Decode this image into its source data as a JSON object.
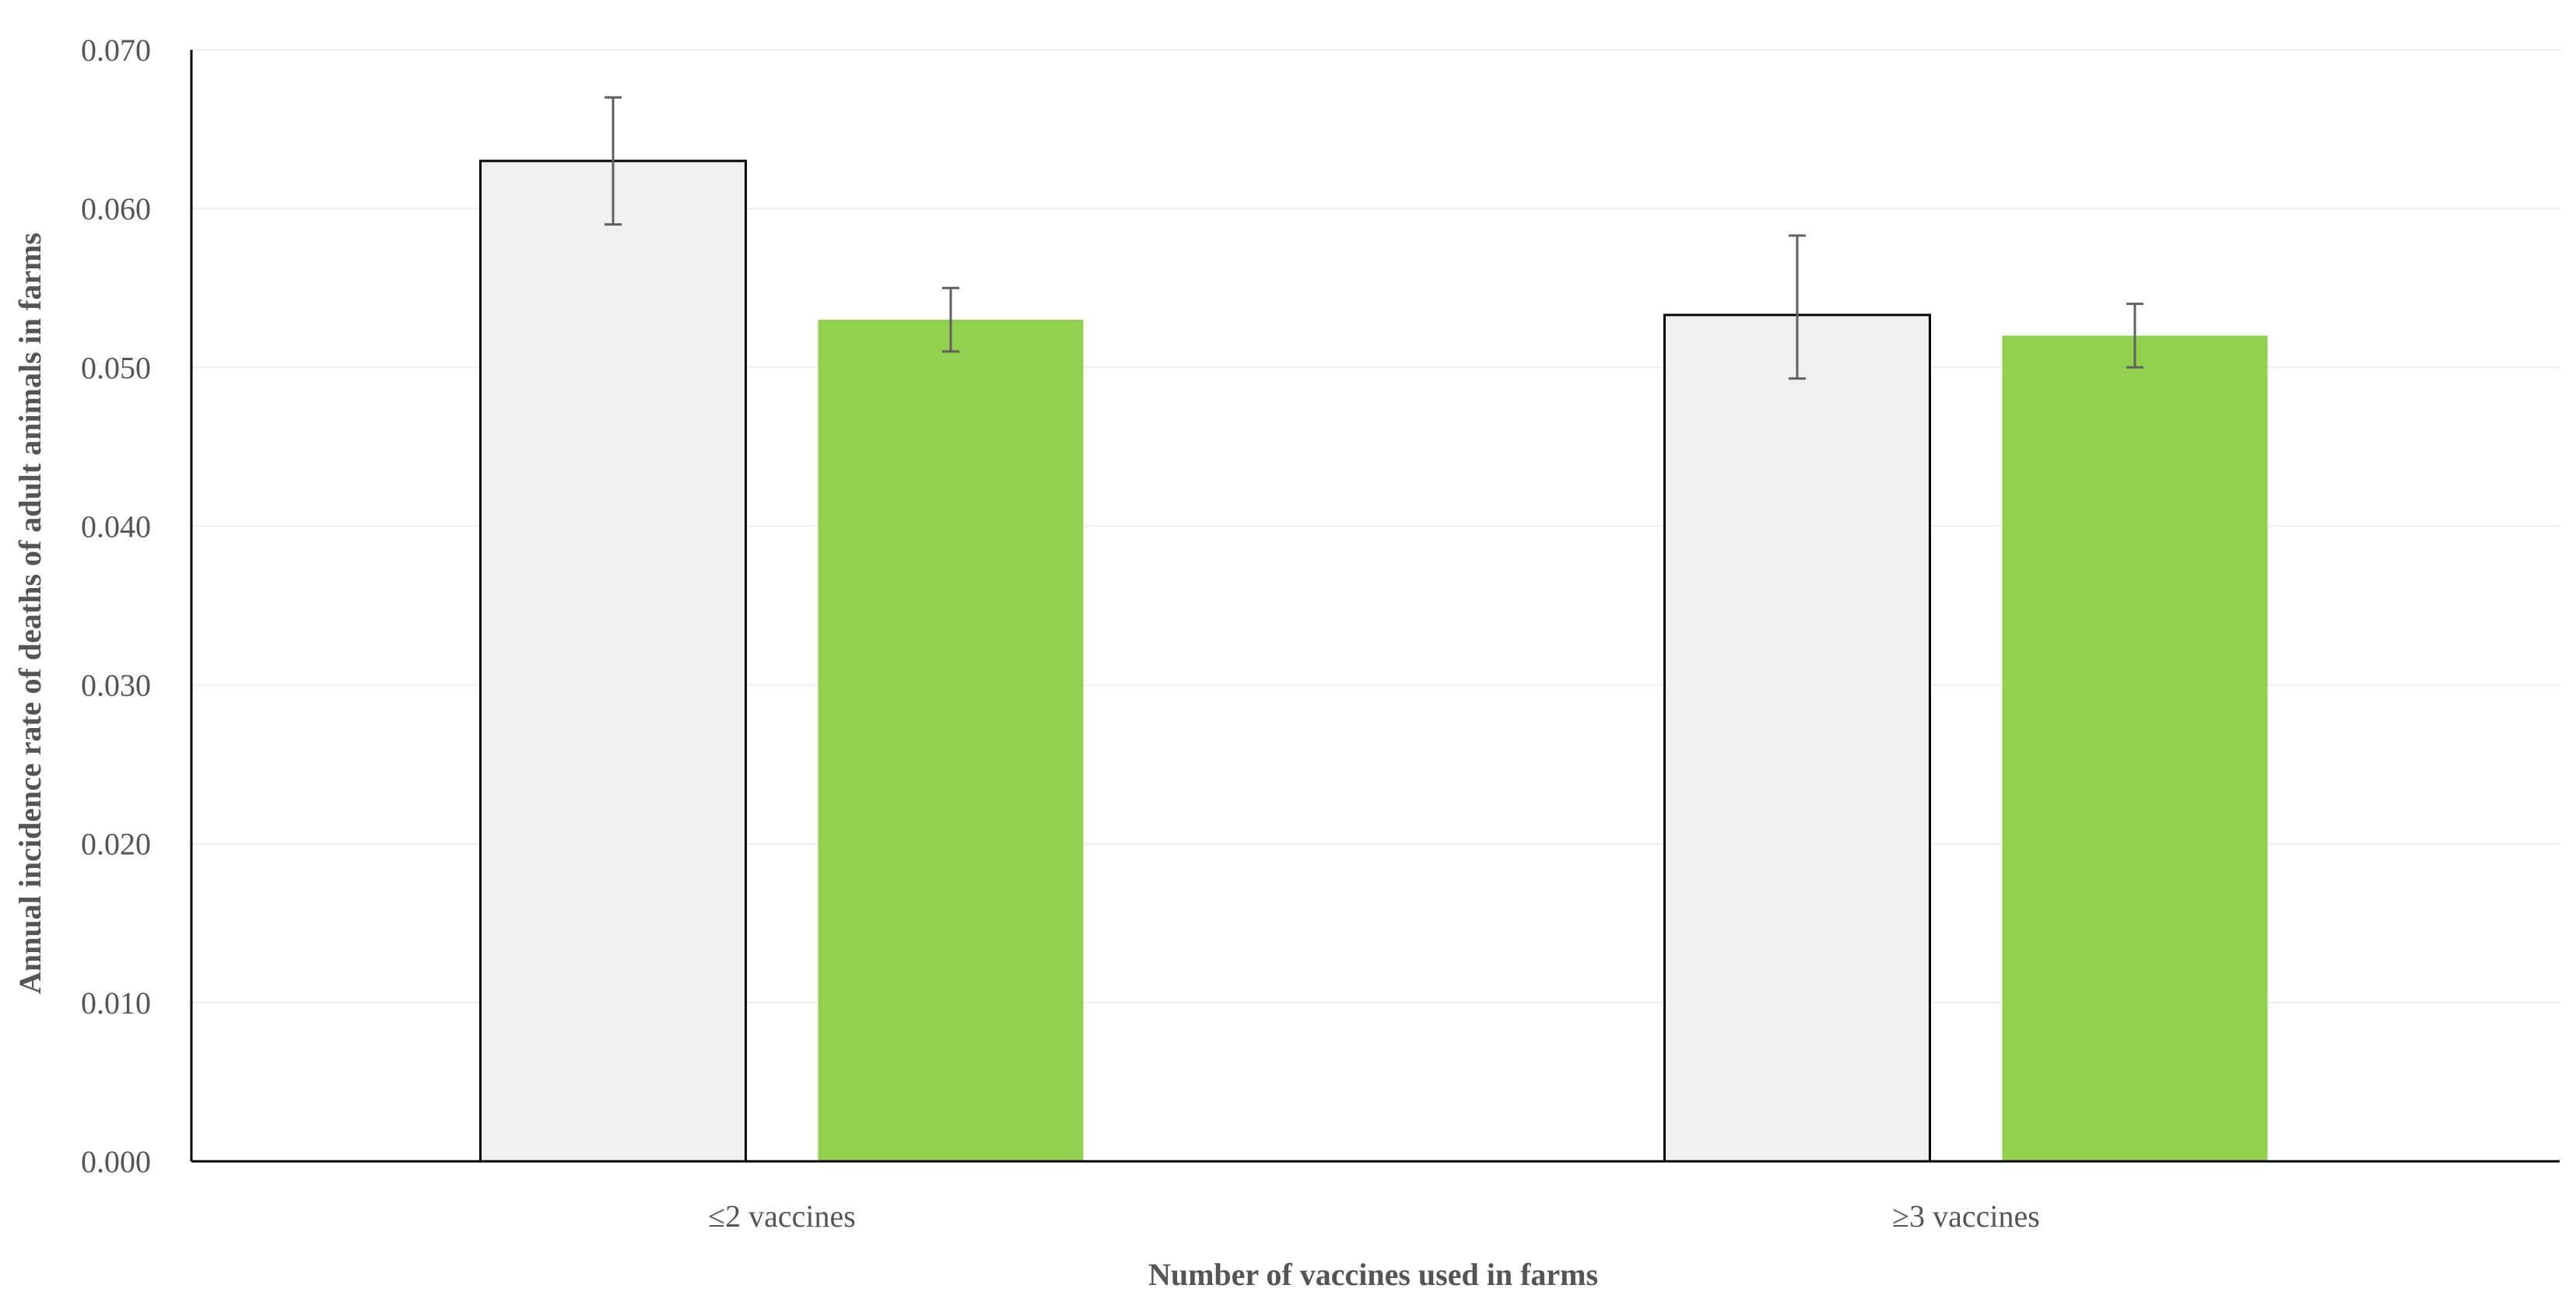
{
  "chart_data": {
    "type": "bar",
    "title": "",
    "xlabel": "Number of vaccines used in farms",
    "ylabel": "Annual incidence rate of deaths of adult animals in farms",
    "categories": [
      "≤2 vaccines",
      "≥3 vaccines"
    ],
    "ylim": [
      0,
      0.07
    ],
    "yticks": [
      0.0,
      0.01,
      0.02,
      0.03,
      0.04,
      0.05,
      0.06,
      0.07
    ],
    "ytick_labels": [
      "0.000",
      "0.010",
      "0.020",
      "0.030",
      "0.040",
      "0.050",
      "0.060",
      "0.070"
    ],
    "grid": true,
    "legend": "none",
    "series": [
      {
        "color": "#f0f0f0",
        "stroke": "#000000",
        "values": [
          0.063,
          0.0533
        ],
        "error_low": [
          0.059,
          0.0493
        ],
        "error_high": [
          0.067,
          0.0583
        ]
      },
      {
        "color": "#92d050",
        "stroke": "none",
        "values": [
          0.053,
          0.052
        ],
        "error_low": [
          0.051,
          0.05
        ],
        "error_high": [
          0.055,
          0.054
        ]
      }
    ]
  }
}
